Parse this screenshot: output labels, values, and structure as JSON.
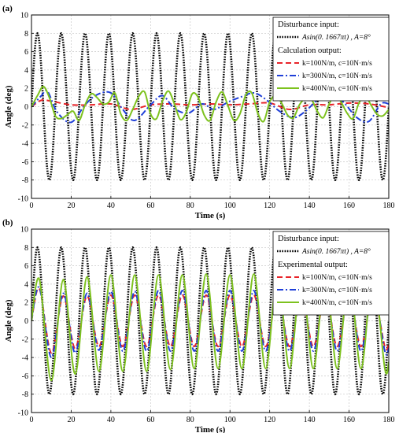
{
  "chart_data": [
    {
      "panel_label": "(a)",
      "type": "line",
      "xlabel": "Time (s)",
      "ylabel": "Angle  (deg)",
      "xlim": [
        0,
        180
      ],
      "ylim": [
        -10,
        10
      ],
      "xticks": [
        "0",
        "20",
        "40",
        "60",
        "80",
        "100",
        "120",
        "140",
        "160",
        "180"
      ],
      "yticks": [
        "-10",
        "-8",
        "-6",
        "-4",
        "-2",
        "0",
        "2",
        "4",
        "6",
        "8",
        "10"
      ],
      "grid": true,
      "legend_position": "top-right",
      "legend": {
        "input_heading": "Disturbance input:",
        "input_entry": "Asin(0. 1667πt) , A=8°",
        "output_heading": "Calculation output:",
        "entries": [
          "k=100N/m, c=10N·m/s",
          "k=300N/m, c=10N·m/s",
          "k=400N/m, c=10N·m/s"
        ]
      },
      "series": [
        {
          "legend_index": 0,
          "role": "input",
          "color": "#000000",
          "style": "dotted",
          "t": [
            0,
            3,
            6,
            9,
            12
          ],
          "values": [
            0,
            8,
            0,
            -8,
            0
          ],
          "note_period_s": 12
        },
        {
          "legend_index": 1,
          "color": "#e8242a",
          "style": "dashed",
          "t": [
            0,
            5,
            10,
            20,
            30,
            40,
            50,
            60,
            70,
            80,
            90,
            100,
            110,
            120,
            130,
            140,
            150,
            160,
            170,
            180
          ],
          "values": [
            0,
            0.7,
            0.6,
            0.2,
            0.2,
            0.3,
            -0.3,
            0.2,
            0.3,
            0.2,
            0.3,
            0.2,
            0.3,
            0.4,
            -0.3,
            0.2,
            0.2,
            0.4,
            0.3,
            -0.1
          ]
        },
        {
          "legend_index": 2,
          "color": "#1f3fd8",
          "style": "dashdot",
          "t": [
            0,
            5,
            8,
            13,
            20,
            27,
            33,
            40,
            46,
            52,
            60,
            66,
            72,
            79,
            86,
            92,
            99,
            106,
            112,
            118,
            125,
            132,
            138,
            145,
            152,
            158,
            164,
            170,
            176,
            180
          ],
          "values": [
            0,
            1.2,
            1.7,
            -0.6,
            -1.7,
            0.2,
            1.3,
            1.5,
            -0.3,
            -1.5,
            0.2,
            1.2,
            -0.2,
            -0.7,
            0.3,
            -0.3,
            0.5,
            1.1,
            1.5,
            0.8,
            -0.5,
            -1.2,
            -0.5,
            0.9,
            1.5,
            0.3,
            -1.2,
            -1.6,
            0.3,
            0.3
          ]
        },
        {
          "legend_index": 3,
          "color": "#7dc21e",
          "style": "solid",
          "t": [
            0,
            3,
            6,
            9,
            12,
            15,
            18,
            21,
            24,
            27,
            30,
            33,
            36,
            39,
            42,
            45,
            48,
            51,
            54,
            57,
            60,
            63,
            66,
            69,
            72,
            75,
            78,
            81,
            84,
            87,
            90,
            93,
            96,
            99,
            102,
            105,
            108,
            111,
            114,
            117,
            120,
            123,
            126,
            129,
            132,
            135,
            138,
            141,
            144,
            147,
            150,
            153,
            156,
            159,
            162,
            165,
            168,
            171,
            174,
            177,
            180
          ],
          "values": [
            0,
            1.2,
            2.2,
            1.0,
            -1.0,
            -1.3,
            -0.9,
            -0.5,
            -1.5,
            0.2,
            1.4,
            1.0,
            0.3,
            0.5,
            1.5,
            -0.8,
            -1.5,
            -0.3,
            1.1,
            1.6,
            -0.8,
            -1.3,
            0.6,
            1.7,
            0.3,
            -1.4,
            -0.6,
            1.4,
            1.0,
            -0.9,
            -1.5,
            0.5,
            1.6,
            0.1,
            -1.5,
            -0.8,
            1.3,
            1.5,
            -0.7,
            -1.6,
            0.5,
            1.2,
            0.4,
            -0.9,
            -1.2,
            0.2,
            0.9,
            0.8,
            -0.5,
            -1.2,
            0.3,
            1.4,
            0.5,
            -0.7,
            -1.3,
            0.4,
            1.2,
            0.2,
            -0.8,
            -1.0,
            -0.3
          ]
        }
      ]
    },
    {
      "panel_label": "(b)",
      "type": "line",
      "xlabel": "Time (s)",
      "ylabel": "Angle  (deg)",
      "xlim": [
        0,
        180
      ],
      "ylim": [
        -10,
        10
      ],
      "xticks": [
        "0",
        "20",
        "40",
        "60",
        "80",
        "100",
        "120",
        "140",
        "160",
        "180"
      ],
      "yticks": [
        "-10",
        "-8",
        "-6",
        "-4",
        "-2",
        "0",
        "2",
        "4",
        "6",
        "8",
        "10"
      ],
      "grid": true,
      "legend_position": "top-right",
      "legend": {
        "input_heading": "Disturbance input:",
        "input_entry": "Asin(0. 1667πt) , A=8°",
        "output_heading": "Experimental output:",
        "entries": [
          "k=100N/m, c=10N·m/s",
          "k=300N/m, c=10N·m/s",
          "k=400N/m, c=10N·m/s"
        ]
      },
      "series": [
        {
          "legend_index": 0,
          "role": "input",
          "color": "#000000",
          "style": "dotted",
          "t": [
            0,
            3,
            6,
            9,
            12
          ],
          "values": [
            0,
            8,
            0,
            -8,
            0
          ],
          "note_period_s": 12
        },
        {
          "legend_index": 1,
          "color": "#e8242a",
          "style": "dashed",
          "t": [
            0,
            4,
            10,
            16,
            22,
            28,
            34,
            40,
            46,
            52,
            58,
            64,
            70,
            76,
            82,
            88,
            94,
            100,
            106,
            112,
            118,
            124,
            130,
            136,
            142,
            148,
            154,
            160,
            166,
            172,
            178,
            180
          ],
          "values": [
            0,
            3.5,
            -3.5,
            2.7,
            -3.0,
            2.7,
            -2.8,
            2.8,
            -2.8,
            2.8,
            -2.8,
            2.8,
            -2.8,
            2.8,
            -2.8,
            2.8,
            -2.8,
            2.8,
            -2.8,
            2.8,
            -2.8,
            2.8,
            -2.8,
            2.8,
            -2.8,
            2.8,
            -2.8,
            2.8,
            -2.8,
            2.8,
            -2.8,
            -2.5
          ]
        },
        {
          "legend_index": 2,
          "color": "#1f3fd8",
          "style": "dashdot",
          "t": [
            0,
            4,
            10,
            16,
            22,
            28,
            34,
            40,
            46,
            52,
            58,
            64,
            70,
            76,
            82,
            88,
            94,
            100,
            106,
            112,
            118,
            124,
            130,
            136,
            142,
            148,
            154,
            160,
            166,
            172,
            178,
            180
          ],
          "values": [
            0,
            3.6,
            -4.0,
            3.0,
            -3.5,
            3.0,
            -3.2,
            3.2,
            -3.3,
            3.2,
            -3.3,
            3.3,
            -3.3,
            3.3,
            -3.3,
            3.3,
            -3.3,
            3.3,
            -3.3,
            3.3,
            -3.3,
            3.3,
            -3.3,
            3.3,
            -3.3,
            3.3,
            -3.3,
            3.3,
            -3.3,
            3.3,
            -3.3,
            -3.0
          ]
        },
        {
          "legend_index": 3,
          "color": "#7dc21e",
          "style": "solid",
          "t": [
            0,
            4,
            10,
            16,
            22,
            28,
            34,
            40,
            46,
            52,
            58,
            64,
            70,
            76,
            82,
            88,
            94,
            100,
            106,
            112,
            118,
            124,
            130,
            136,
            142,
            148,
            154,
            160,
            166,
            172,
            178,
            180
          ],
          "values": [
            0,
            4.5,
            -6.5,
            4.5,
            -5.8,
            4.8,
            -5.5,
            5.0,
            -5.5,
            5.0,
            -5.5,
            5.0,
            -5.3,
            5.0,
            -5.2,
            5.1,
            -5.2,
            5.0,
            -5.2,
            5.1,
            -5.2,
            5.1,
            -5.2,
            5.0,
            -5.2,
            5.1,
            -5.2,
            5.0,
            -5.2,
            5.0,
            -5.2,
            -4.5
          ]
        }
      ]
    }
  ]
}
